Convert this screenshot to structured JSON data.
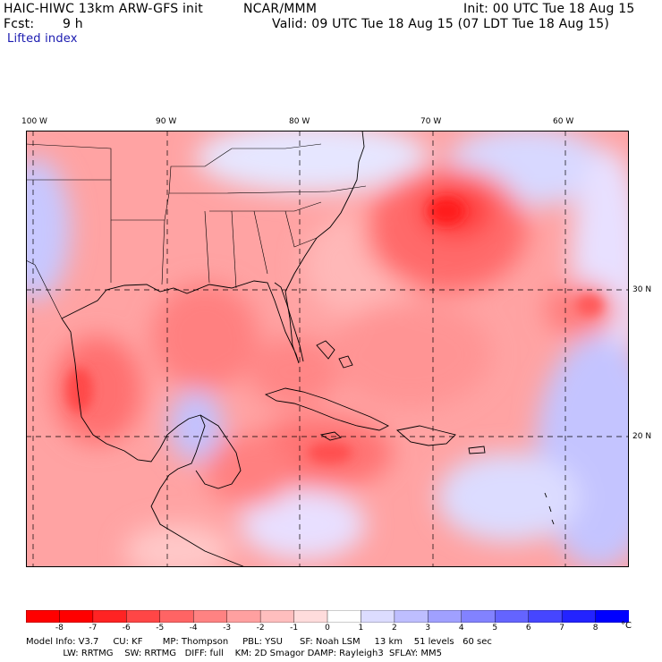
{
  "header": {
    "model_line": "HAIC-HIWC 13km ARW-GFS init",
    "org": "NCAR/MMM",
    "init": "Init: 00 UTC Tue 18 Aug 15",
    "fcst_label": "Fcst:",
    "fcst_value": "9 h",
    "valid": "Valid: 09 UTC Tue 18 Aug 15 (07 LDT Tue 18 Aug 15)",
    "field": "Lifted index"
  },
  "map": {
    "lon_labels": [
      "100 W",
      "90 W",
      "80 W",
      "70 W",
      "60 W"
    ],
    "lat_labels": [
      "30 N",
      "20 N"
    ]
  },
  "colorbar": {
    "ticks": [
      "-8",
      "-7",
      "-6",
      "-5",
      "-4",
      "-3",
      "-2",
      "-1",
      "0",
      "1",
      "2",
      "3",
      "4",
      "5",
      "6",
      "7",
      "8"
    ],
    "unit": "°C",
    "colors": [
      "#ff0000",
      "#ff2323",
      "#ff4646",
      "#ff6464",
      "#ff8282",
      "#ffa0a0",
      "#ffbebe",
      "#ffdcdc",
      "#ffffff",
      "#dcdcff",
      "#bebeff",
      "#a0a0ff",
      "#8282ff",
      "#6464ff",
      "#4646ff",
      "#2323ff",
      "#0000ff"
    ]
  },
  "footer": {
    "line1": "Model Info: V3.7     CU: KF       MP: Thompson     PBL: YSU      SF: Noah LSM     13 km    51 levels   60 sec",
    "line2": "             LW: RRTMG    SW: RRTMG   DIFF: full    KM: 2D Smagor DAMP: Rayleigh3  SFLAY: MM5"
  }
}
